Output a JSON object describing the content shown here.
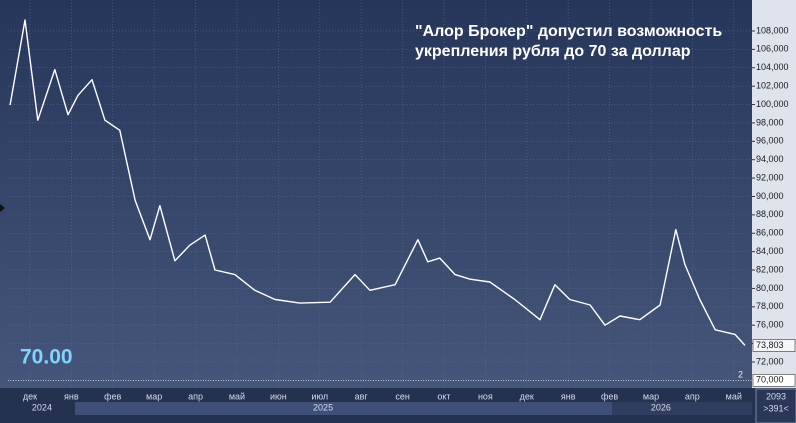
{
  "chart_data": {
    "type": "line",
    "title_lines": [
      "\"Алор Брокер\" допустил возможность",
      "укрепления рубля до 70 за доллар"
    ],
    "big_label": "70.00",
    "x": [
      -0.48,
      -0.12,
      0.19,
      0.6,
      0.92,
      1.16,
      1.5,
      1.81,
      2.17,
      2.54,
      2.9,
      3.14,
      3.5,
      3.86,
      4.23,
      4.47,
      4.95,
      5.43,
      5.92,
      6.52,
      7.25,
      7.85,
      8.21,
      8.82,
      9.37,
      9.61,
      9.9,
      10.27,
      10.63,
      11.11,
      11.71,
      12.32,
      12.68,
      13.04,
      13.53,
      13.89,
      14.25,
      14.73,
      15.22,
      15.6,
      15.82,
      16.18,
      16.55,
      17.03,
      17.27
    ],
    "series": [
      {
        "color": "#ffffff",
        "values": [
          99950,
          109200,
          98300,
          103800,
          98900,
          101000,
          102700,
          98300,
          97200,
          89600,
          85300,
          89000,
          83000,
          84700,
          85800,
          82000,
          81500,
          79800,
          78800,
          78400,
          78500,
          81500,
          79800,
          80400,
          85300,
          82900,
          83300,
          81500,
          81000,
          80700,
          78800,
          76600,
          80400,
          78800,
          78200,
          76000,
          77000,
          76600,
          78200,
          86400,
          82600,
          78800,
          75500,
          75000,
          73803
        ]
      }
    ],
    "xlim": [
      -0.53,
      17.44
    ],
    "ylim": [
      69170,
      111370
    ],
    "xticks": [
      {
        "value": 0,
        "label": "дек"
      },
      {
        "value": 1,
        "label": "янв"
      },
      {
        "value": 2,
        "label": "фев"
      },
      {
        "value": 3,
        "label": "мар"
      },
      {
        "value": 4,
        "label": "апр"
      },
      {
        "value": 5,
        "label": "май"
      },
      {
        "value": 6,
        "label": "июн"
      },
      {
        "value": 7,
        "label": "июл"
      },
      {
        "value": 8,
        "label": "авг"
      },
      {
        "value": 9,
        "label": "сен"
      },
      {
        "value": 10,
        "label": "окт"
      },
      {
        "value": 11,
        "label": "ноя"
      },
      {
        "value": 12,
        "label": "дек"
      },
      {
        "value": 13,
        "label": "янв"
      },
      {
        "value": 14,
        "label": "фев"
      },
      {
        "value": 15,
        "label": "мар"
      },
      {
        "value": 16,
        "label": "апр"
      },
      {
        "value": 17,
        "label": "май"
      }
    ],
    "year_ticks": [
      {
        "value": 0.29,
        "label": "2024"
      },
      {
        "value": 7.08,
        "label": "2025"
      },
      {
        "value": 15.24,
        "label": "2026"
      }
    ],
    "yticks": [
      {
        "value": 72000,
        "label": "72,000"
      },
      {
        "value": 74000,
        "label": "74,000"
      },
      {
        "value": 76000,
        "label": "76,000"
      },
      {
        "value": 78000,
        "label": "78,000"
      },
      {
        "value": 80000,
        "label": "80,000"
      },
      {
        "value": 82000,
        "label": "82,000"
      },
      {
        "value": 84000,
        "label": "84,000"
      },
      {
        "value": 86000,
        "label": "86,000"
      },
      {
        "value": 88000,
        "label": "88,000"
      },
      {
        "value": 90000,
        "label": "90,000"
      },
      {
        "value": 92000,
        "label": "92,000"
      },
      {
        "value": 94000,
        "label": "94,000"
      },
      {
        "value": 96000,
        "label": "96,000"
      },
      {
        "value": 98000,
        "label": "98,000"
      },
      {
        "value": 100000,
        "label": "100,000"
      },
      {
        "value": 102000,
        "label": "102,000"
      },
      {
        "value": 104000,
        "label": "104,000"
      },
      {
        "value": 106000,
        "label": "106,000"
      },
      {
        "value": 108000,
        "label": "108,000"
      }
    ],
    "ref_line": {
      "value": 70000,
      "label": "70,000",
      "marker": "2"
    },
    "last_value": {
      "value": 73803,
      "label": "73,803"
    },
    "corner_info": [
      "2093",
      ">391<"
    ],
    "grid": true
  }
}
